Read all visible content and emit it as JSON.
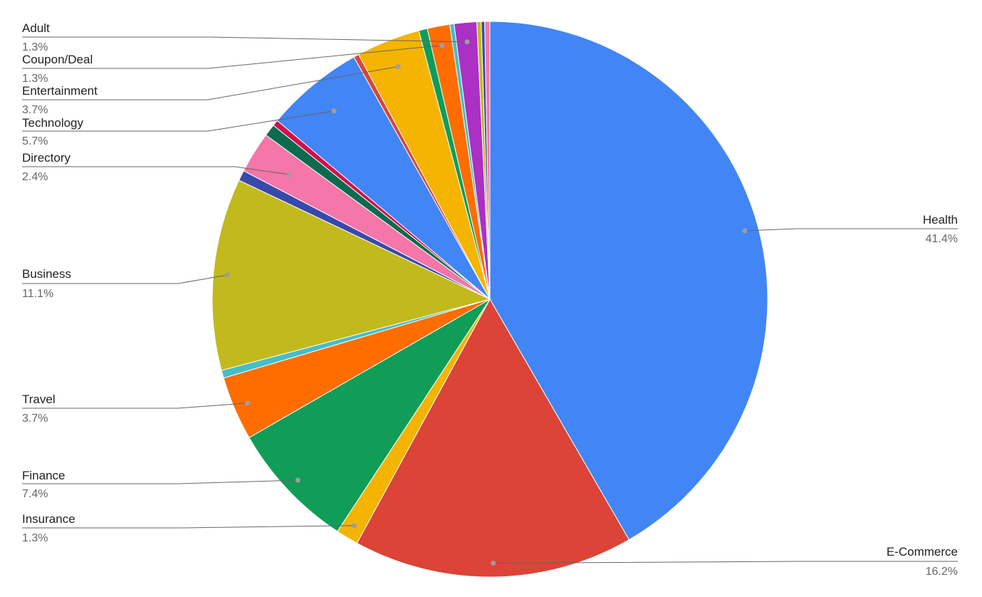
{
  "chart_data": {
    "type": "pie",
    "title": "",
    "start_angle_deg": 0,
    "direction": "clockwise",
    "slices": [
      {
        "label": "Health",
        "value": 41.4,
        "pct_text": "41.4%",
        "color": "#4285F4",
        "labeled": true
      },
      {
        "label": "E-Commerce",
        "value": 16.2,
        "pct_text": "16.2%",
        "color": "#DB4437",
        "labeled": true
      },
      {
        "label": "Insurance",
        "value": 1.3,
        "pct_text": "1.3%",
        "color": "#F4B400",
        "labeled": true
      },
      {
        "label": "Finance",
        "value": 7.4,
        "pct_text": "7.4%",
        "color": "#0F9D58",
        "labeled": true
      },
      {
        "label": "Travel",
        "value": 3.7,
        "pct_text": "3.7%",
        "color": "#FF6D00",
        "labeled": true
      },
      {
        "label": "",
        "value": 0.45,
        "pct_text": "",
        "color": "#46BDC6",
        "labeled": false
      },
      {
        "label": "Business",
        "value": 11.1,
        "pct_text": "11.1%",
        "color": "#C2B91D",
        "labeled": true
      },
      {
        "label": "",
        "value": 0.6,
        "pct_text": "",
        "color": "#3949AB",
        "labeled": false
      },
      {
        "label": "Directory",
        "value": 2.4,
        "pct_text": "2.4%",
        "color": "#F576A8",
        "labeled": true
      },
      {
        "label": "",
        "value": 0.7,
        "pct_text": "",
        "color": "#0B6B4F",
        "labeled": false
      },
      {
        "label": "",
        "value": 0.35,
        "pct_text": "",
        "color": "#D0114C",
        "labeled": false
      },
      {
        "label": "Technology",
        "value": 5.7,
        "pct_text": "5.7%",
        "color": "#4285F4",
        "labeled": true
      },
      {
        "label": "",
        "value": 0.3,
        "pct_text": "",
        "color": "#DB4437",
        "labeled": false
      },
      {
        "label": "Entertainment",
        "value": 3.7,
        "pct_text": "3.7%",
        "color": "#F4B400",
        "labeled": true
      },
      {
        "label": "",
        "value": 0.5,
        "pct_text": "",
        "color": "#0F9D58",
        "labeled": false
      },
      {
        "label": "Coupon/Deal",
        "value": 1.3,
        "pct_text": "1.3%",
        "color": "#FF6D00",
        "labeled": true
      },
      {
        "label": "",
        "value": 0.25,
        "pct_text": "",
        "color": "#46BDC6",
        "labeled": false
      },
      {
        "label": "Adult",
        "value": 1.3,
        "pct_text": "1.3%",
        "color": "#AB30C4",
        "labeled": true
      },
      {
        "label": "",
        "value": 0.25,
        "pct_text": "",
        "color": "#C2B91D",
        "labeled": false
      },
      {
        "label": "",
        "value": 0.2,
        "pct_text": "",
        "color": "#3949AB",
        "labeled": false
      },
      {
        "label": "",
        "value": 0.3,
        "pct_text": "",
        "color": "#F576A8",
        "labeled": false
      }
    ]
  }
}
